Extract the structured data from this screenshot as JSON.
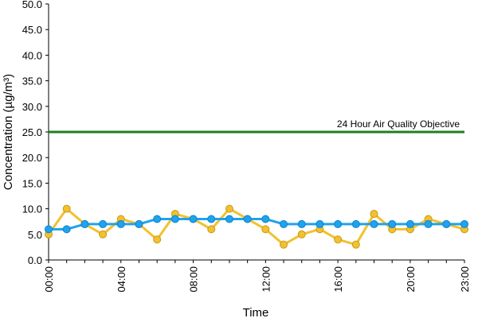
{
  "chart_data": {
    "type": "line",
    "title": "",
    "xlabel": "Time",
    "ylabel": "Concentration (µg/m³)",
    "x": [
      0,
      1,
      2,
      3,
      4,
      5,
      6,
      7,
      8,
      9,
      10,
      11,
      12,
      13,
      14,
      15,
      16,
      17,
      18,
      19,
      20,
      21,
      22,
      23
    ],
    "xlim": [
      0,
      23
    ],
    "x_tick_values": [
      0,
      4,
      8,
      12,
      16,
      20,
      23
    ],
    "x_tick_labels": [
      "00:00",
      "04:00",
      "08:00",
      "12:00",
      "16:00",
      "20:00",
      "23:00"
    ],
    "ylim": [
      0,
      50
    ],
    "y_tick_values": [
      0,
      5,
      10,
      15,
      20,
      25,
      30,
      35,
      40,
      45,
      50
    ],
    "y_tick_labels": [
      "0.0",
      "5.0",
      "10.0",
      "15.0",
      "20.0",
      "25.0",
      "30.0",
      "35.0",
      "40.0",
      "45.0",
      "50.0"
    ],
    "grid": false,
    "legend": "none",
    "series": [
      {
        "color": "#f2c12e",
        "marker_color": "#f2c12e",
        "values": [
          5,
          10,
          7,
          5,
          8,
          7,
          4,
          9,
          8,
          6,
          10,
          8,
          6,
          3,
          5,
          6,
          4,
          3,
          9,
          6,
          6,
          8,
          7,
          6
        ]
      },
      {
        "color": "#1ea3ef",
        "marker_color": "#1ea3ef",
        "values": [
          6,
          6,
          7,
          7,
          7,
          7,
          8,
          8,
          8,
          8,
          8,
          8,
          8,
          7,
          7,
          7,
          7,
          7,
          7,
          7,
          7,
          7,
          7,
          7
        ]
      }
    ],
    "reference_line": {
      "value": 25,
      "label": "24 Hour Air Quality Objective",
      "color": "#1f7f1f"
    }
  }
}
